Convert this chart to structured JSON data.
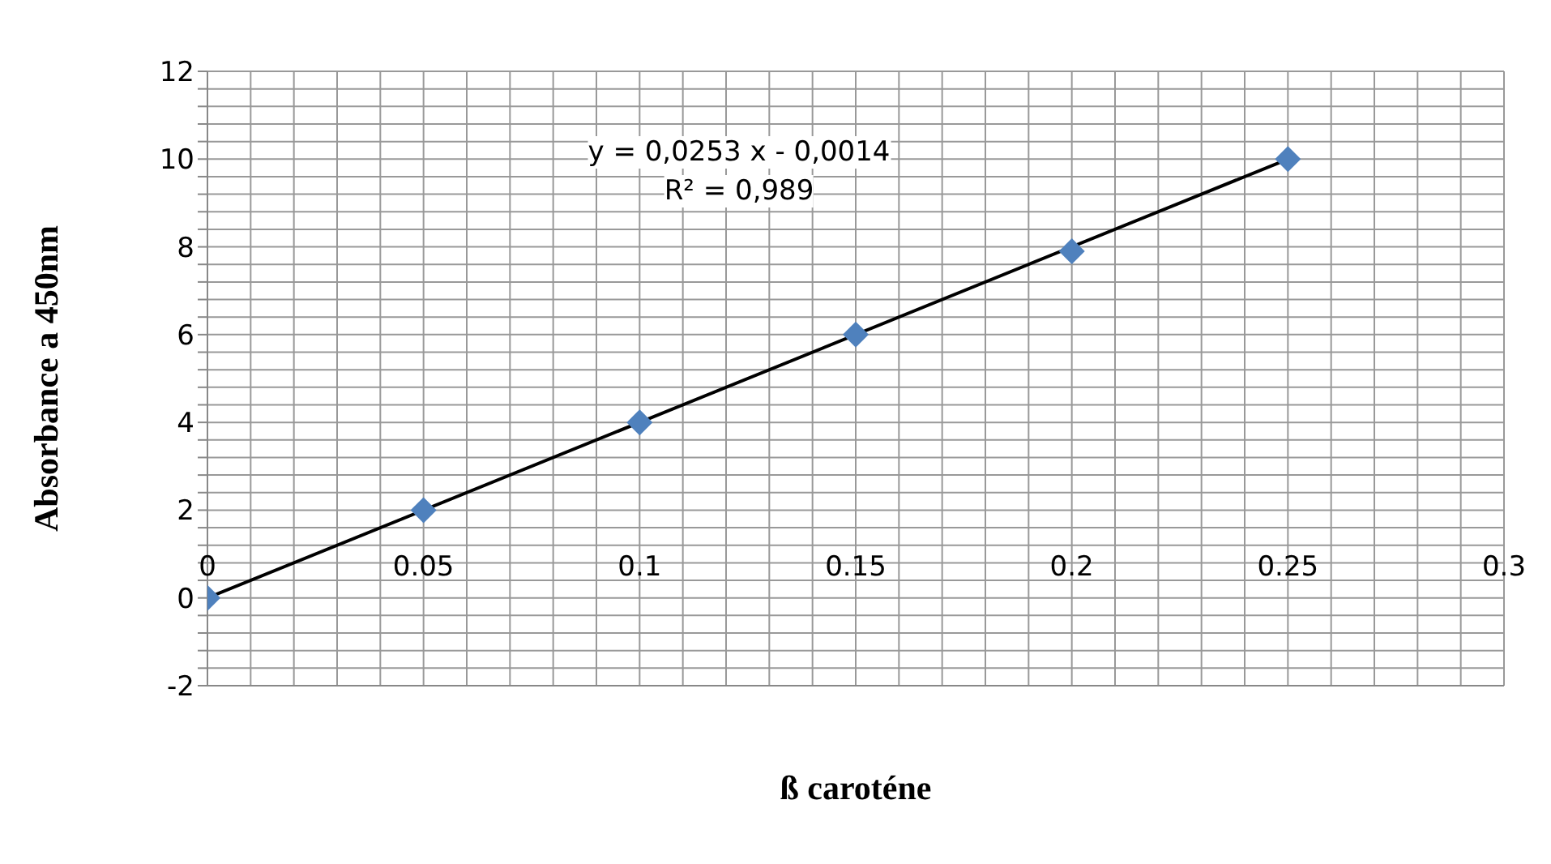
{
  "chart_data": {
    "type": "scatter",
    "xlabel": "ß caroténe",
    "ylabel": "Absorbance a 450nm",
    "x": [
      0,
      0.05,
      0.1,
      0.15,
      0.2,
      0.25
    ],
    "series": [
      {
        "color": "#4f81bd",
        "marker": "diamond",
        "values": [
          0,
          2,
          4,
          6,
          7.9,
          10
        ]
      },
      {
        "type": "line",
        "color": "#000000",
        "marker": "none",
        "line_style": "solid",
        "x": [
          0,
          0.25
        ],
        "values": [
          0,
          10
        ]
      }
    ],
    "annotations": [
      "y = 0,0253 x - 0,0014",
      "R² = 0,989"
    ],
    "xlim": [
      0,
      0.3
    ],
    "ylim": [
      -2,
      12
    ],
    "xticks": [
      0,
      {
        "value": 0.01,
        "label": null
      },
      {
        "value": 0.02,
        "label": null
      },
      {
        "value": 0.03,
        "label": null
      },
      {
        "value": 0.04,
        "label": null
      },
      0.05,
      {
        "value": 0.06,
        "label": null
      },
      {
        "value": 0.07,
        "label": null
      },
      {
        "value": 0.08,
        "label": null
      },
      {
        "value": 0.09,
        "label": null
      },
      0.1,
      {
        "value": 0.11,
        "label": null
      },
      {
        "value": 0.12,
        "label": null
      },
      {
        "value": 0.13,
        "label": null
      },
      {
        "value": 0.14,
        "label": null
      },
      0.15,
      {
        "value": 0.16,
        "label": null
      },
      {
        "value": 0.17,
        "label": null
      },
      {
        "value": 0.18,
        "label": null
      },
      {
        "value": 0.19,
        "label": null
      },
      0.2,
      {
        "value": 0.21,
        "label": null
      },
      {
        "value": 0.22,
        "label": null
      },
      {
        "value": 0.23,
        "label": null
      },
      {
        "value": 0.24,
        "label": null
      },
      0.25,
      {
        "value": 0.26,
        "label": null
      },
      {
        "value": 0.27,
        "label": null
      },
      {
        "value": 0.28,
        "label": null
      },
      {
        "value": 0.29,
        "label": null
      },
      0.3
    ],
    "yticks": [
      -2,
      {
        "value": -1.6,
        "label": null
      },
      {
        "value": -1.2,
        "label": null
      },
      {
        "value": -0.8,
        "label": null
      },
      {
        "value": -0.4,
        "label": null
      },
      0,
      {
        "value": 0.4,
        "label": null
      },
      {
        "value": 0.8,
        "label": null
      },
      {
        "value": 1.2,
        "label": null
      },
      {
        "value": 1.6,
        "label": null
      },
      2,
      {
        "value": 2.4,
        "label": null
      },
      {
        "value": 2.8,
        "label": null
      },
      {
        "value": 3.2,
        "label": null
      },
      {
        "value": 3.6,
        "label": null
      },
      4,
      {
        "value": 4.4,
        "label": null
      },
      {
        "value": 4.8,
        "label": null
      },
      {
        "value": 5.2,
        "label": null
      },
      {
        "value": 5.6,
        "label": null
      },
      6,
      {
        "value": 6.4,
        "label": null
      },
      {
        "value": 6.8,
        "label": null
      },
      {
        "value": 7.2,
        "label": null
      },
      {
        "value": 7.6,
        "label": null
      },
      8,
      {
        "value": 8.4,
        "label": null
      },
      {
        "value": 8.8,
        "label": null
      },
      {
        "value": 9.2,
        "label": null
      },
      {
        "value": 9.6,
        "label": null
      },
      10,
      {
        "value": 10.4,
        "label": null
      },
      {
        "value": 10.8,
        "label": null
      },
      {
        "value": 11.2,
        "label": null
      },
      {
        "value": 11.6,
        "label": null
      },
      12
    ],
    "grid": true,
    "legend": false
  }
}
